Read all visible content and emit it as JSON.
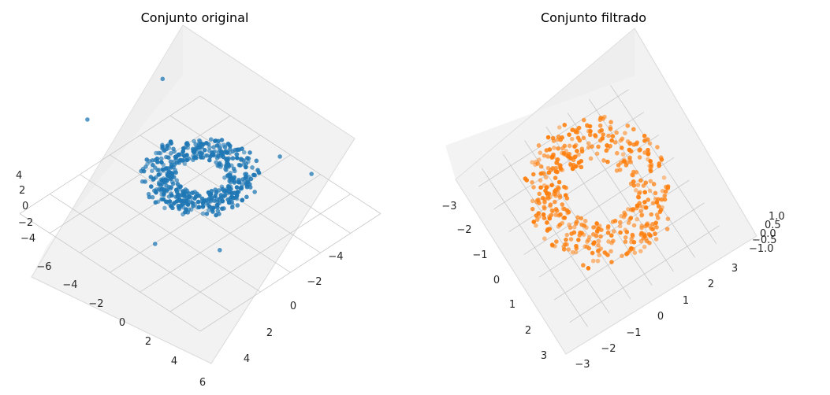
{
  "colors": {
    "series_left": "#1f77b4",
    "series_right": "#ff7f0e",
    "pane": "#f2f2f2",
    "pane_dark": "#ebebeb",
    "grid": "#c8c8c8",
    "axis": "#000000"
  },
  "chart_data": [
    {
      "type": "scatter3d",
      "title": "Conjunto original",
      "xlabel": "",
      "ylabel": "",
      "zlabel": "",
      "xlim": [
        -6,
        6
      ],
      "ylim": [
        -6,
        6
      ],
      "zlim": [
        -5,
        5
      ],
      "x_ticks": [
        "−6",
        "−4",
        "−2",
        "0",
        "2",
        "4",
        "6"
      ],
      "y_ticks": [
        "−4",
        "−2",
        "0",
        "2",
        "4"
      ],
      "z_ticks": [
        "4",
        "2",
        "0",
        "−2",
        "−4"
      ],
      "grid": true,
      "view": {
        "elevation_deg": 60,
        "azimuth_deg": 45
      },
      "series": [
        {
          "description": "torus-shaped cluster, major radius ~2, minor radius ~0.9, about 500 points",
          "shape": "torus",
          "major_radius": 2.0,
          "minor_radius": 0.9,
          "n_points": 500
        }
      ],
      "outliers": [
        {
          "x": -5.5,
          "y": -2.0,
          "z": 3.0
        },
        {
          "x": -4.5,
          "y": 2.0,
          "z": 4.5
        },
        {
          "x": 4.8,
          "y": -3.5,
          "z": 1.0
        },
        {
          "x": 3.2,
          "y": 4.2,
          "z": -1.0
        },
        {
          "x": 1.0,
          "y": -4.0,
          "z": -2.5
        },
        {
          "x": 0.5,
          "y": 4.8,
          "z": -3.0
        }
      ]
    },
    {
      "type": "scatter3d",
      "title": "Conjunto filtrado",
      "xlabel": "",
      "ylabel": "",
      "zlabel": "",
      "xlim": [
        -3.5,
        3.5
      ],
      "ylim": [
        -3.5,
        3.5
      ],
      "zlim": [
        -1.2,
        1.2
      ],
      "x_ticks": [
        "−3",
        "−2",
        "−1",
        "0",
        "1",
        "2",
        "3"
      ],
      "y_ticks": [
        "−3",
        "−2",
        "−1",
        "0",
        "1",
        "2",
        "3"
      ],
      "z_ticks": [
        "1.0",
        "0.5",
        "0.0",
        "−0.5",
        "−1.0"
      ],
      "grid": true,
      "view": {
        "elevation_deg": 30,
        "azimuth_deg": 60
      },
      "series": [
        {
          "description": "filtered torus points, major radius ~2, minor radius ~0.9, about 460 points",
          "shape": "torus",
          "major_radius": 2.0,
          "minor_radius": 0.9,
          "n_points": 460
        }
      ]
    }
  ]
}
